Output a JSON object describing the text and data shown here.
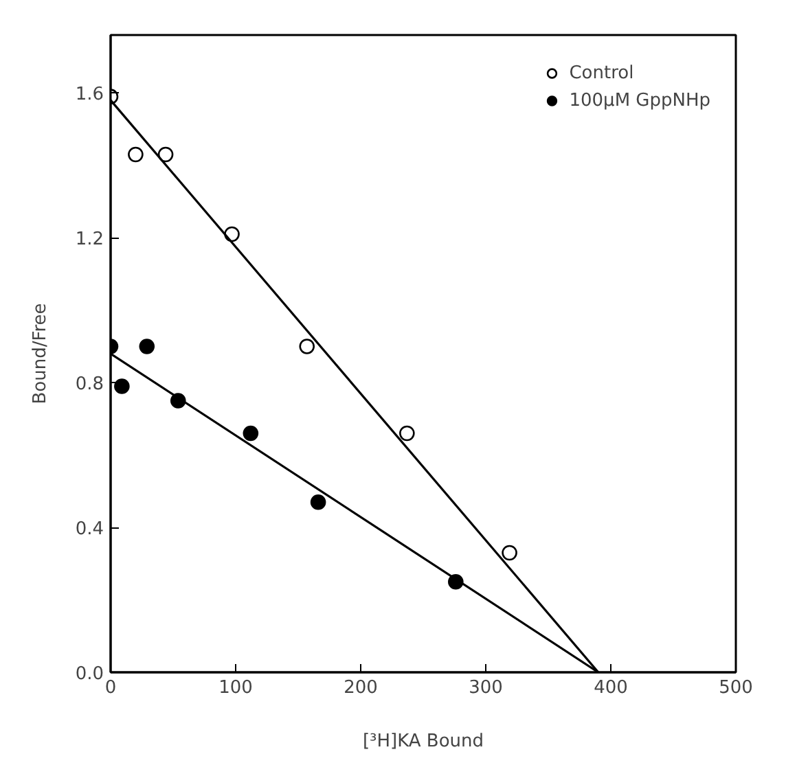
{
  "chart_data": {
    "type": "scatter",
    "xlabel": "[³H]KA Bound",
    "ylabel": "Bound/Free",
    "xlim": [
      0,
      500
    ],
    "ylim": [
      0,
      1.76
    ],
    "xticks": [
      0,
      100,
      200,
      300,
      400,
      500
    ],
    "yticks": [
      {
        "value": 0,
        "label": "0.0"
      },
      0.4,
      0.8,
      1.2,
      1.6
    ],
    "grid": false,
    "legend": "top right",
    "series": [
      {
        "name": "Control",
        "marker": "circle",
        "color": "#ffffff",
        "x": [
          0,
          20,
          44,
          97,
          157,
          237,
          319
        ],
        "values": [
          1.59,
          1.43,
          1.43,
          1.21,
          0.9,
          0.66,
          0.33
        ]
      },
      {
        "name": "100µM GppNHp",
        "marker": "circle",
        "color": "#000000",
        "x": [
          0,
          9,
          29,
          54,
          112,
          166,
          276
        ],
        "values": [
          0.9,
          0.79,
          0.9,
          0.75,
          0.66,
          0.47,
          0.25
        ]
      },
      {
        "type": "line",
        "color": "#000000",
        "x": [
          0,
          390
        ],
        "values": [
          1.58,
          0
        ]
      },
      {
        "type": "line",
        "color": "#000000",
        "x": [
          0,
          390
        ],
        "values": [
          0.88,
          0
        ]
      }
    ]
  }
}
